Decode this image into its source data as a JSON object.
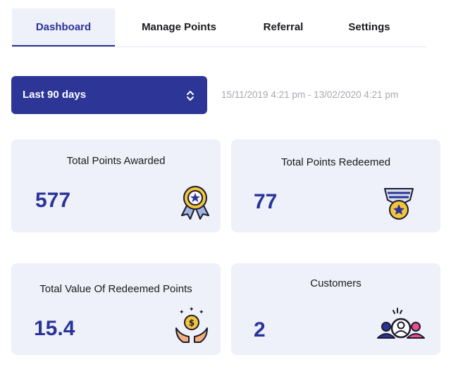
{
  "tabs": [
    {
      "label": "Dashboard",
      "active": true
    },
    {
      "label": "Manage Points",
      "active": false
    },
    {
      "label": "Referral",
      "active": false
    },
    {
      "label": "Settings",
      "active": false
    }
  ],
  "range_select": {
    "value": "Last 90 days",
    "chevron": "up-down-chevron-icon"
  },
  "date_range": "15/11/2019 4:21 pm - 13/02/2020 4:21 pm",
  "cards": [
    {
      "title": "Total Points Awarded",
      "value": "577",
      "icon": "award-ribbon-icon"
    },
    {
      "title": "Total Points Redeemed",
      "value": "77",
      "icon": "medal-icon"
    },
    {
      "title": "Total Value Of Redeemed Points",
      "value": "15.4",
      "icon": "coin-hands-icon"
    },
    {
      "title": "Customers",
      "value": "2",
      "icon": "customers-icon"
    }
  ],
  "colors": {
    "accent": "#2d3597",
    "card_bg": "#eef0fa",
    "muted_text": "#a7a9b0"
  }
}
